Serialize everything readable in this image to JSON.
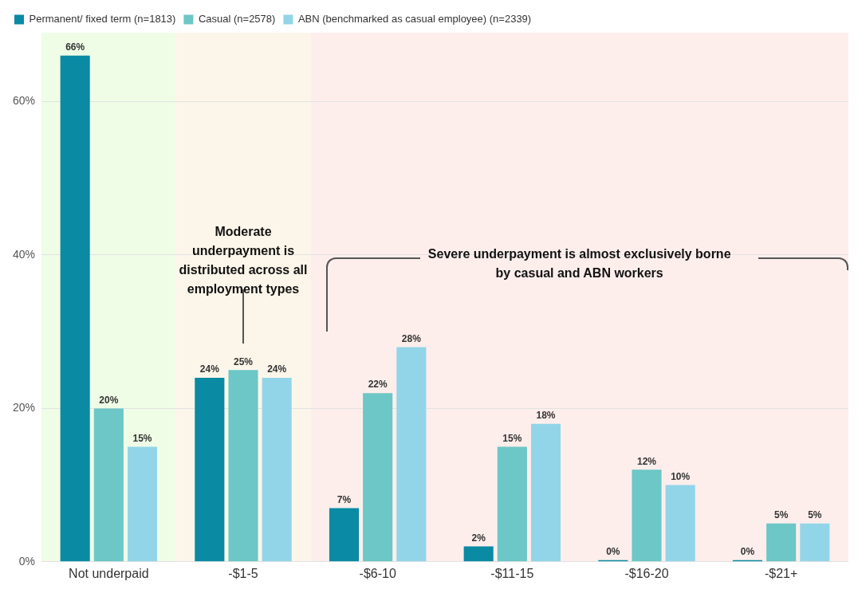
{
  "chart_data": {
    "type": "bar",
    "categories": [
      "Not underpaid",
      "-$1-5",
      "-$6-10",
      "-$11-15",
      "-$16-20",
      "-$21+"
    ],
    "series": [
      {
        "name": "Permanent/ fixed term (n=1813)",
        "color": "#0a8aa3",
        "values": [
          66,
          24,
          7,
          2,
          0,
          0
        ],
        "value_labels": [
          "66%",
          "24%",
          "7%",
          "2%",
          "0%",
          "0%"
        ]
      },
      {
        "name": "Casual (n=2578)",
        "color": "#6cc7c6",
        "values": [
          20,
          25,
          22,
          15,
          12,
          5
        ],
        "value_labels": [
          "20%",
          "25%",
          "22%",
          "15%",
          "12%",
          "5%"
        ]
      },
      {
        "name": "ABN (benchmarked as casual employee) (n=2339)",
        "color": "#93d5e8",
        "values": [
          15,
          24,
          28,
          18,
          10,
          5
        ],
        "value_labels": [
          "15%",
          "24%",
          "28%",
          "18%",
          "10%",
          "5%"
        ]
      }
    ],
    "ylim": [
      0,
      69
    ],
    "yticks": [
      {
        "value": 0,
        "label": "0%"
      },
      {
        "value": 20,
        "label": "20%"
      },
      {
        "value": 40,
        "label": "40%"
      },
      {
        "value": 60,
        "label": "60%"
      }
    ],
    "grid": "y",
    "legend": "top left",
    "bands": [
      {
        "axis": "x",
        "from": "Not underpaid",
        "to": "Not underpaid",
        "color": "#effde7"
      },
      {
        "axis": "x",
        "from": "-$1-5",
        "to": "-$1-5",
        "color": "#fcf6ea"
      },
      {
        "axis": "x",
        "from": "-$6-10",
        "to": "-$21+",
        "color": "#fdeeec"
      }
    ],
    "annotations": [
      "Moderate underpayment is distributed across all employment types",
      "Severe underpayment is almost exclusively borne by casual and ABN workers"
    ]
  }
}
